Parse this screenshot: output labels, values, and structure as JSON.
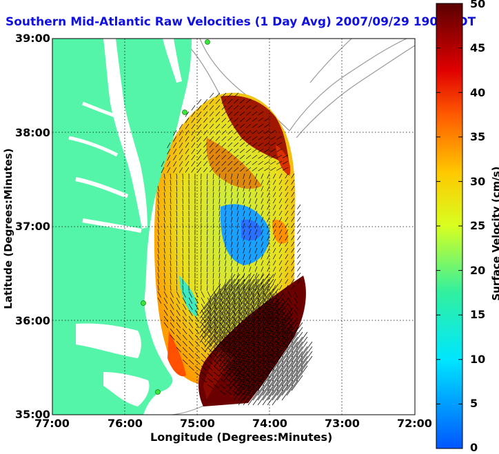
{
  "title": "Southern Mid-Atlantic Raw Velocities (1 Day Avg) 2007/09/29 1900 EDT",
  "xaxis": {
    "label": "Longitude (Degrees:Minutes)",
    "ticks": [
      "77:00",
      "76:00",
      "75:00",
      "74:00",
      "73:00",
      "72:00"
    ]
  },
  "yaxis": {
    "label": "Latitude (Degrees:Minutes)",
    "ticks": [
      "39:00",
      "38:00",
      "37:00",
      "36:00",
      "35:00"
    ]
  },
  "colorbar": {
    "label": "Surface Velocity (cm/s)",
    "ticks": [
      "50",
      "45",
      "40",
      "35",
      "30",
      "25",
      "20",
      "15",
      "10",
      "5",
      "0"
    ],
    "range": [
      0,
      50
    ]
  },
  "map": {
    "extent": {
      "lon": [
        -77.0,
        -72.0
      ],
      "lat": [
        35.0,
        39.0
      ]
    },
    "colors": {
      "land": "#54f5a8",
      "water": "#ffffff",
      "grid": "#000000",
      "isobath": "#9a9a9a"
    },
    "station_markers": 4
  }
}
